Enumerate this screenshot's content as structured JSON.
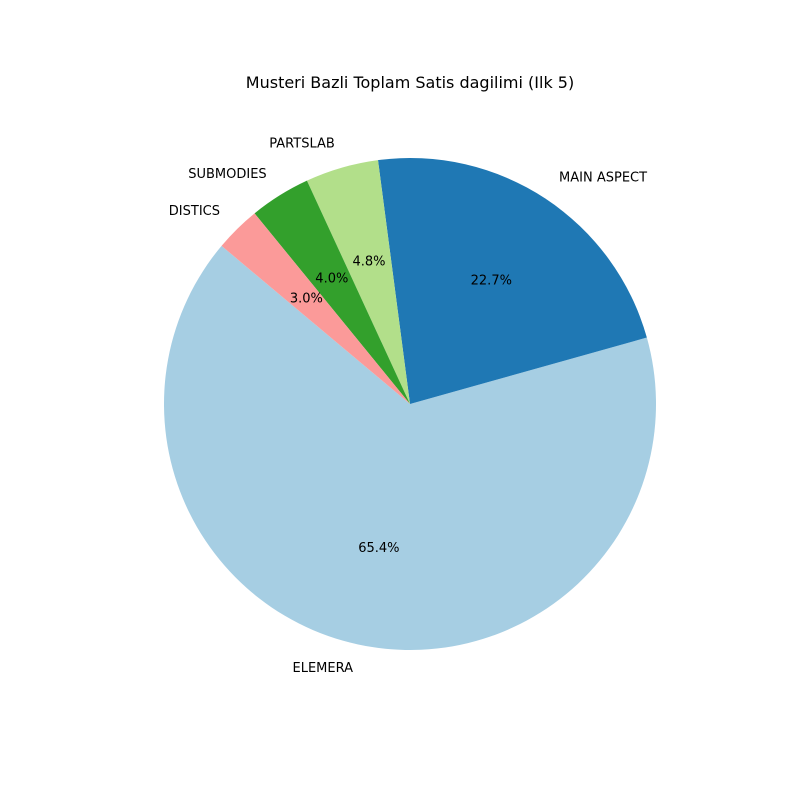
{
  "chart_data": {
    "type": "pie",
    "title": "Musteri Bazli Toplam Satis dagilimi (Ilk 5)",
    "start_angle_deg": 140,
    "direction": "counterclockwise",
    "slices": [
      {
        "label": "ELEMERA",
        "value": 65.4,
        "pct_text": "65.4%",
        "color": "#a6cee3"
      },
      {
        "label": "MAIN ASPECT",
        "value": 22.7,
        "pct_text": "22.7%",
        "color": "#1f78b4"
      },
      {
        "label": "PARTSLAB",
        "value": 4.8,
        "pct_text": "4.8%",
        "color": "#b2df8a"
      },
      {
        "label": "SUBMODIES",
        "value": 4.0,
        "pct_text": "4.0%",
        "color": "#33a02c"
      },
      {
        "label": "DISTICS",
        "value": 3.0,
        "pct_text": "3.0%",
        "color": "#fb9a99"
      }
    ],
    "legend": false
  }
}
